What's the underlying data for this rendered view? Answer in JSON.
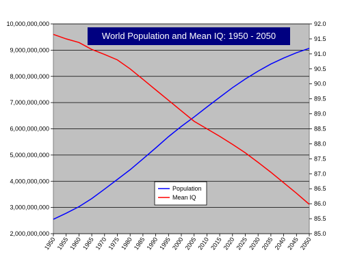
{
  "chart_data": {
    "type": "line",
    "title": "World Population and Mean IQ: 1950 - 2050",
    "x": [
      1950,
      1955,
      1960,
      1965,
      1970,
      1975,
      1980,
      1985,
      1990,
      1995,
      2000,
      2005,
      2010,
      2015,
      2020,
      2025,
      2030,
      2035,
      2040,
      2045,
      2050
    ],
    "x_tick_labels": [
      "1950",
      "1955",
      "1960",
      "1965",
      "1970",
      "1975",
      "1980",
      "1985",
      "1990",
      "1995",
      "2000",
      "2005",
      "2010",
      "2015",
      "2020",
      "2025",
      "2030",
      "2035",
      "2040",
      "2045",
      "2050"
    ],
    "xlim": [
      1950,
      2050
    ],
    "y_left": {
      "lim": [
        2000000000,
        10000000000
      ],
      "tick_labels": [
        "2,000,000,000",
        "3,000,000,000",
        "4,000,000,000",
        "5,000,000,000",
        "6,000,000,000",
        "7,000,000,000",
        "8,000,000,000",
        "9,000,000,000",
        "10,000,000,000"
      ],
      "tick_values": [
        2000000000,
        3000000000,
        4000000000,
        5000000000,
        6000000000,
        7000000000,
        8000000000,
        9000000000,
        10000000000
      ]
    },
    "y_right": {
      "lim": [
        85.0,
        92.0
      ],
      "tick_labels": [
        "85.0",
        "85.5",
        "86.0",
        "86.5",
        "87.0",
        "87.5",
        "88.0",
        "88.5",
        "89.0",
        "89.5",
        "90.0",
        "90.5",
        "91.0",
        "91.5",
        "92.0"
      ],
      "tick_values": [
        85.0,
        85.5,
        86.0,
        86.5,
        87.0,
        87.5,
        88.0,
        88.5,
        89.0,
        89.5,
        90.0,
        90.5,
        91.0,
        91.5,
        92.0
      ]
    },
    "series": [
      {
        "name": "Population",
        "axis": "left",
        "color": "#0000ff",
        "values": [
          2550000000,
          2780000000,
          3030000000,
          3340000000,
          3700000000,
          4070000000,
          4440000000,
          4850000000,
          5270000000,
          5700000000,
          6090000000,
          6450000000,
          6830000000,
          7200000000,
          7570000000,
          7900000000,
          8200000000,
          8470000000,
          8700000000,
          8900000000,
          9070000000
        ]
      },
      {
        "name": "Mean IQ",
        "axis": "right",
        "color": "#ff0000",
        "values": [
          91.65,
          91.5,
          91.38,
          91.15,
          90.98,
          90.8,
          90.5,
          90.15,
          89.8,
          89.45,
          89.1,
          88.75,
          88.5,
          88.25,
          87.98,
          87.7,
          87.38,
          87.05,
          86.7,
          86.35,
          85.98
        ]
      }
    ],
    "grid": true,
    "legend_position": "lower-center",
    "colors": {
      "plot_background": "#c0c0c0",
      "title_background": "#000080",
      "title_text": "#ffffff",
      "gridline": "#000000"
    }
  }
}
